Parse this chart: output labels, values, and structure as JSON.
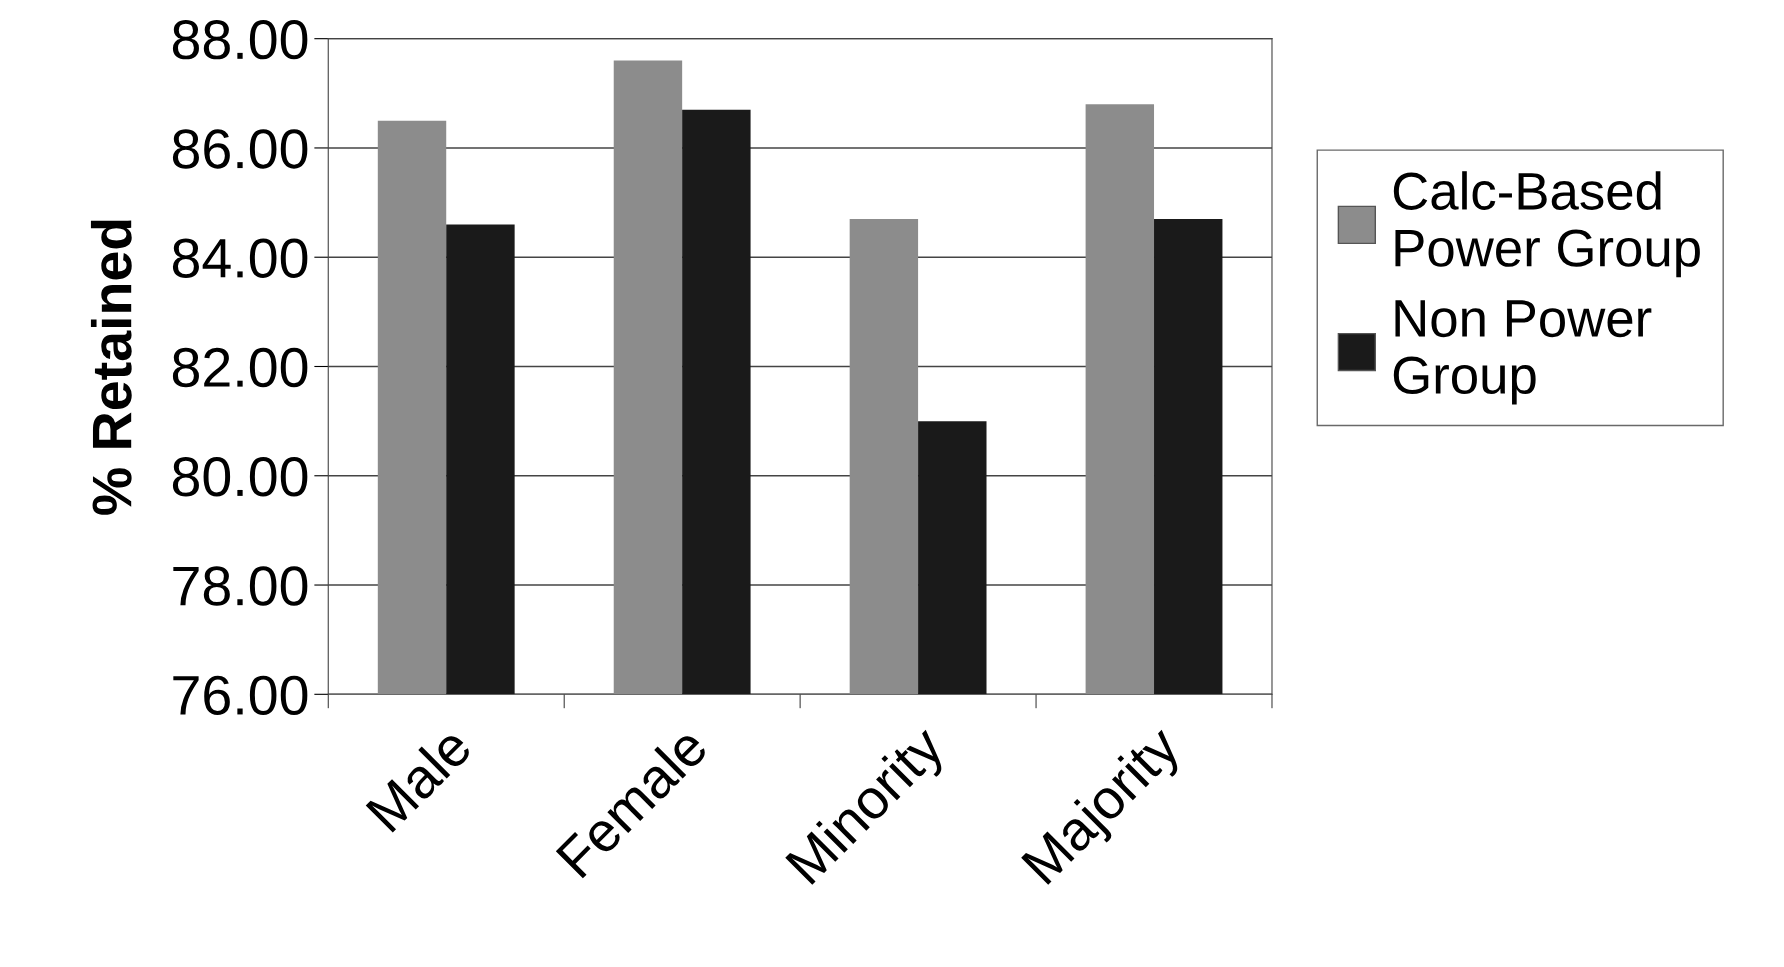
{
  "chart_data": {
    "type": "bar",
    "ylabel": "% Retained",
    "categories": [
      "Male",
      "Female",
      "Minority",
      "Majority"
    ],
    "series": [
      {
        "name": "Calc-Based Power Group",
        "color": "#8c8c8c",
        "values": [
          86.5,
          87.6,
          84.7,
          86.8
        ]
      },
      {
        "name": "Non Power Group",
        "color": "#1a1a1a",
        "values": [
          84.6,
          86.7,
          81.0,
          84.7
        ]
      }
    ],
    "ylim": [
      76,
      88
    ],
    "yticks": [
      {
        "value": 76,
        "label": "76.00"
      },
      {
        "value": 78,
        "label": "78.00"
      },
      {
        "value": 80,
        "label": "80.00"
      },
      {
        "value": 82,
        "label": "82.00"
      },
      {
        "value": 84,
        "label": "84.00"
      },
      {
        "value": 86,
        "label": "86.00"
      },
      {
        "value": 88,
        "label": "88.00"
      }
    ],
    "grid": "y",
    "legend": "right"
  }
}
